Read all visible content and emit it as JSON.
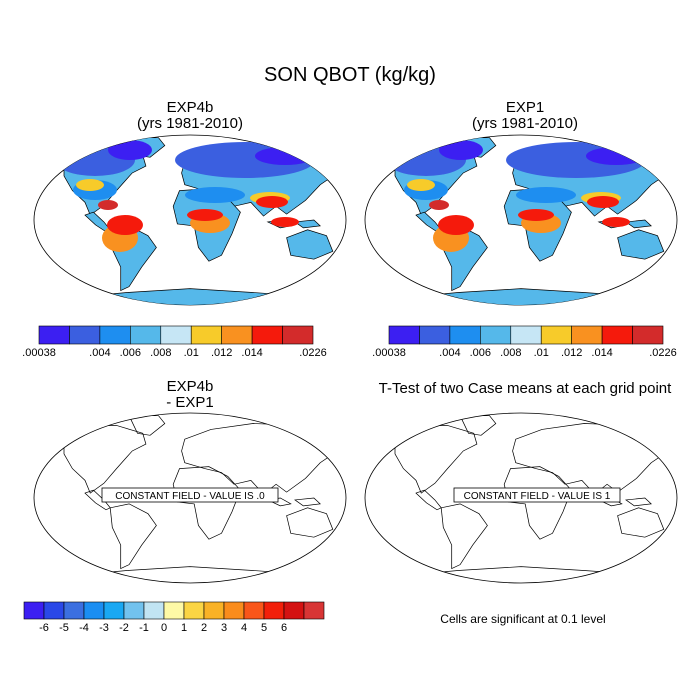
{
  "title": "SON QBOT (kg/kg)",
  "panels": {
    "top_left": {
      "line1": "EXP4b",
      "line2": "(yrs 1981-2010)"
    },
    "top_right": {
      "line1": "EXP1",
      "line2": "(yrs 1981-2010)"
    },
    "bottom_left": {
      "line1": "EXP4b",
      "line2": "- EXP1",
      "field_note": "CONSTANT FIELD - VALUE IS .0"
    },
    "bottom_right": {
      "title": "T-Test of two Case means at each grid point",
      "field_note": "CONSTANT FIELD - VALUE IS 1"
    }
  },
  "colorbar_q": {
    "colors": [
      "#3c1ff2",
      "#3b5fe0",
      "#1e8ef0",
      "#55b8ea",
      "#c6e6f5",
      "#f7cb2a",
      "#f99120",
      "#f51a0c",
      "#d32b2b"
    ],
    "labels": [
      ".00038",
      ".004",
      ".006",
      ".008",
      ".01",
      ".012",
      ".014",
      ".0226"
    ]
  },
  "colorbar_diff": {
    "colors": [
      "#3c1ff2",
      "#2a48e8",
      "#3b6fe0",
      "#1b8ef2",
      "#1aa8f3",
      "#72c2ee",
      "#c1e4f3",
      "#fef9a6",
      "#fbd544",
      "#f9b226",
      "#fa8c1c",
      "#f9561a",
      "#f21f0a",
      "#d41212",
      "#d83535"
    ],
    "labels": [
      "-6",
      "-5",
      "-4",
      "-3",
      "-2",
      "-1",
      "0",
      "1",
      "2",
      "3",
      "4",
      "5",
      "6"
    ]
  },
  "significance_note": "Cells are significant at 0.1 level"
}
